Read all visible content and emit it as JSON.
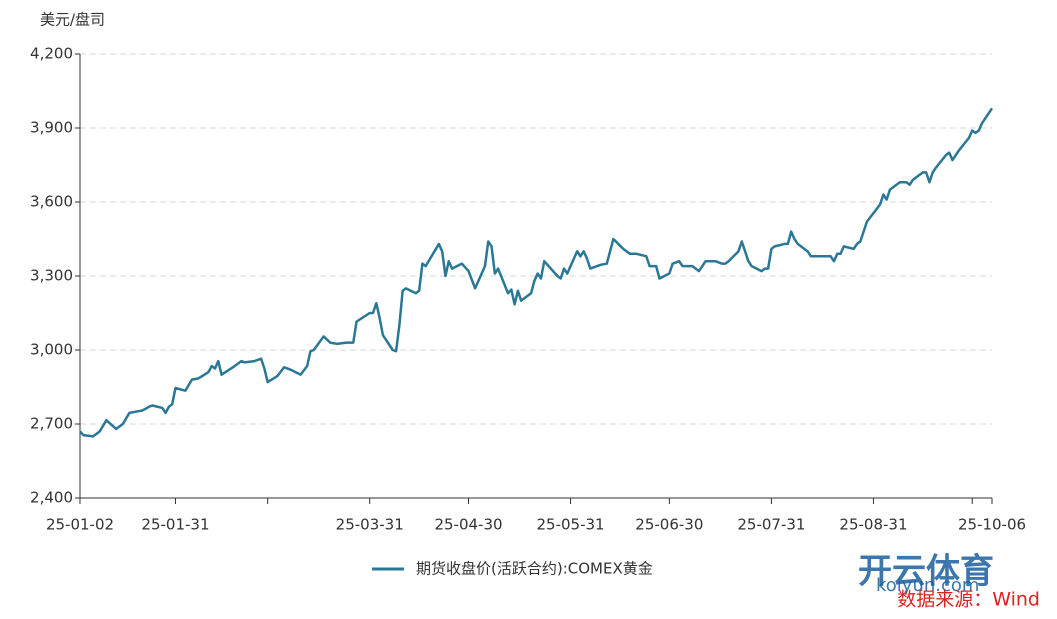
{
  "chart_data": {
    "type": "line",
    "y_label": "美元/盘司",
    "source": "数据来源：Wind",
    "watermark": [
      "开云体育",
      "koiyun.com"
    ],
    "xlim": [
      "25-01-02",
      "25-10-06"
    ],
    "xticks": [
      {
        "value": "25-01-02",
        "label": "25-01-02"
      },
      {
        "value": "25-01-31",
        "label": "25-01-31"
      },
      {
        "value": "25-02-28"
      },
      {
        "value": "25-03-31",
        "label": "25-03-31"
      },
      {
        "value": "25-04-30",
        "label": "25-04-30"
      },
      {
        "value": "25-05-31",
        "label": "25-05-31"
      },
      {
        "value": "25-06-30",
        "label": "25-06-30"
      },
      {
        "value": "25-07-31",
        "label": "25-07-31"
      },
      {
        "value": "25-08-31",
        "label": "25-08-31"
      },
      {
        "value": "25-09-30"
      },
      {
        "value": "25-10-06",
        "label": "25-10-06"
      }
    ],
    "ylim": [
      2400,
      4200
    ],
    "yticks": [
      {
        "value": 2400,
        "label": "2,400"
      },
      {
        "value": 2700,
        "label": "2,700"
      },
      {
        "value": 3000,
        "label": "3,000"
      },
      {
        "value": 3300,
        "label": "3,300"
      },
      {
        "value": 3600,
        "label": "3,600"
      },
      {
        "value": 3900,
        "label": "3,900"
      },
      {
        "value": 4200,
        "label": "4,200"
      }
    ],
    "grid": true,
    "legend": "bottom",
    "x": [
      "25-01-02",
      "25-01-03",
      "25-01-06",
      "25-01-08",
      "25-01-10",
      "25-01-13",
      "25-01-15",
      "25-01-17",
      "25-01-21",
      "25-01-23",
      "25-01-24",
      "25-01-27",
      "25-01-28",
      "25-01-29",
      "25-01-30",
      "25-01-31",
      "25-02-03",
      "25-02-05",
      "25-02-07",
      "25-02-10",
      "25-02-11",
      "25-02-12",
      "25-02-13",
      "25-02-14",
      "25-02-18",
      "25-02-20",
      "25-02-21",
      "25-02-24",
      "25-02-26",
      "25-02-27",
      "25-02-28",
      "25-03-03",
      "25-03-05",
      "25-03-07",
      "25-03-10",
      "25-03-12",
      "25-03-13",
      "25-03-14",
      "25-03-17",
      "25-03-19",
      "25-03-21",
      "25-03-24",
      "25-03-26",
      "25-03-27",
      "25-03-31",
      "25-04-01",
      "25-04-02",
      "25-04-03",
      "25-04-04",
      "25-04-07",
      "25-04-08",
      "25-04-09",
      "25-04-10",
      "25-04-11",
      "25-04-14",
      "25-04-15",
      "25-04-16",
      "25-04-17",
      "25-04-21",
      "25-04-22",
      "25-04-23",
      "25-04-24",
      "25-04-25",
      "25-04-28",
      "25-04-30",
      "25-05-02",
      "25-05-05",
      "25-05-06",
      "25-05-07",
      "25-05-08",
      "25-05-09",
      "25-05-12",
      "25-05-13",
      "25-05-14",
      "25-05-15",
      "25-05-16",
      "25-05-19",
      "25-05-20",
      "25-05-21",
      "25-05-22",
      "25-05-23",
      "25-05-27",
      "25-05-28",
      "25-05-29",
      "25-05-30",
      "25-06-02",
      "25-06-03",
      "25-06-04",
      "25-06-05",
      "25-06-06",
      "25-06-09",
      "25-06-11",
      "25-06-13",
      "25-06-16",
      "25-06-18",
      "25-06-20",
      "25-06-23",
      "25-06-24",
      "25-06-25",
      "25-06-26",
      "25-06-27",
      "25-06-30",
      "25-07-01",
      "25-07-03",
      "25-07-04",
      "25-07-07",
      "25-07-09",
      "25-07-11",
      "25-07-14",
      "25-07-16",
      "25-07-17",
      "25-07-18",
      "25-07-21",
      "25-07-22",
      "25-07-23",
      "25-07-24",
      "25-07-25",
      "25-07-28",
      "25-07-29",
      "25-07-30",
      "25-07-31",
      "25-08-01",
      "25-08-04",
      "25-08-05",
      "25-08-06",
      "25-08-07",
      "25-08-08",
      "25-08-11",
      "25-08-12",
      "25-08-13",
      "25-08-15",
      "25-08-18",
      "25-08-19",
      "25-08-20",
      "25-08-21",
      "25-08-22",
      "25-08-25",
      "25-08-26",
      "25-08-27",
      "25-08-28",
      "25-08-29",
      "25-09-02",
      "25-09-03",
      "25-09-04",
      "25-09-05",
      "25-09-08",
      "25-09-09",
      "25-09-10",
      "25-09-11",
      "25-09-12",
      "25-09-15",
      "25-09-16",
      "25-09-17",
      "25-09-18",
      "25-09-19",
      "25-09-22",
      "25-09-23",
      "25-09-24",
      "25-09-25",
      "25-09-26",
      "25-09-29",
      "25-09-30",
      "25-10-01",
      "25-10-02",
      "25-10-03",
      "25-10-06"
    ],
    "series": [
      {
        "name": "期货收盘价(活跃合约):COMEX黄金",
        "color": "#2a7896",
        "values": [
          2670,
          2655,
          2650,
          2670,
          2715,
          2680,
          2700,
          2745,
          2755,
          2770,
          2775,
          2765,
          2745,
          2770,
          2780,
          2846,
          2835,
          2880,
          2885,
          2910,
          2935,
          2925,
          2955,
          2900,
          2935,
          2955,
          2950,
          2955,
          2965,
          2925,
          2870,
          2895,
          2930,
          2920,
          2900,
          2935,
          2995,
          3000,
          3055,
          3030,
          3025,
          3030,
          3030,
          3115,
          3150,
          3150,
          3190,
          3130,
          3060,
          3000,
          2995,
          3100,
          3240,
          3250,
          3230,
          3240,
          3350,
          3340,
          3430,
          3400,
          3300,
          3360,
          3330,
          3350,
          3320,
          3250,
          3340,
          3440,
          3420,
          3310,
          3330,
          3230,
          3245,
          3185,
          3240,
          3200,
          3230,
          3280,
          3310,
          3290,
          3360,
          3300,
          3290,
          3330,
          3310,
          3400,
          3380,
          3400,
          3370,
          3330,
          3345,
          3350,
          3450,
          3410,
          3390,
          3390,
          3380,
          3340,
          3340,
          3340,
          3290,
          3310,
          3350,
          3360,
          3340,
          3340,
          3320,
          3360,
          3360,
          3350,
          3350,
          3360,
          3400,
          3440,
          3400,
          3360,
          3340,
          3320,
          3330,
          3330,
          3410,
          3420,
          3430,
          3430,
          3480,
          3450,
          3430,
          3400,
          3380,
          3380,
          3380,
          3380,
          3360,
          3390,
          3390,
          3420,
          3410,
          3430,
          3440,
          3480,
          3520,
          3590,
          3630,
          3610,
          3650,
          3680,
          3680,
          3680,
          3670,
          3690,
          3720,
          3720,
          3680,
          3720,
          3740,
          3790,
          3800,
          3770,
          3790,
          3810,
          3860,
          3890,
          3880,
          3890,
          3920,
          3980
        ]
      }
    ]
  }
}
